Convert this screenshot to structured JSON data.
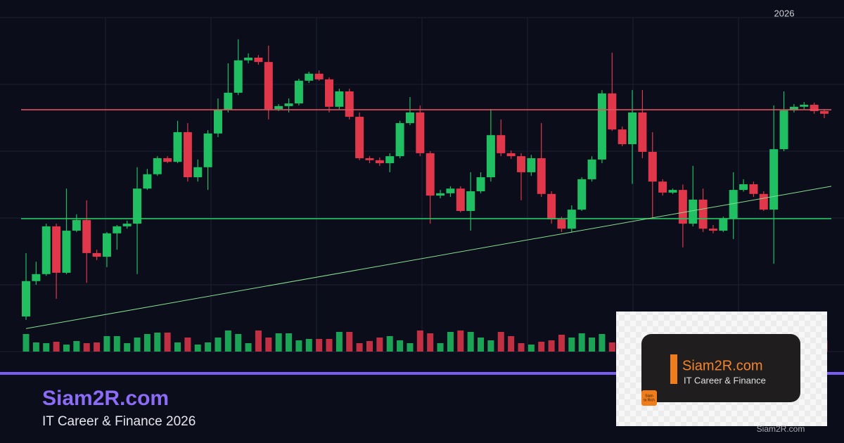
{
  "chart_data": {
    "type": "candlestick",
    "year_label": "2026",
    "open": [
      10.5,
      21.1,
      23.2,
      37.5,
      23.6,
      36.2,
      39.4,
      29.5,
      28.4,
      35.4,
      37.5,
      38.3,
      48.8,
      53.1,
      57.9,
      56.8,
      65.7,
      52.2,
      55.2,
      65.3,
      72.4,
      77.5,
      87.2,
      88.0,
      86.7,
      72.6,
      73.5,
      74.3,
      81.1,
      83.2,
      81.5,
      73.3,
      77.9,
      70.3,
      57.9,
      57.3,
      56.4,
      58.5,
      68.4,
      71.6,
      59.4,
      46.7,
      47.4,
      48.8,
      42.1,
      48.0,
      52.2,
      64.8,
      59.4,
      58.5,
      53.7,
      57.9,
      47.2,
      39.6,
      36.8,
      42.5,
      51.6,
      57.5,
      77.3,
      66.5,
      62.1,
      71.6,
      59.8,
      50.9,
      47.6,
      48.4,
      38.3,
      45.5,
      36.8,
      36.2,
      39.8,
      48.4,
      50.1,
      47.2,
      42.5,
      60.6,
      72.2,
      73.3,
      73.9,
      72.0
    ],
    "high": [
      29.5,
      26.9,
      38.3,
      38.3,
      48.8,
      41.1,
      45.3,
      30.5,
      35.8,
      37.9,
      39.2,
      55.2,
      54.7,
      58.5,
      58.5,
      69.1,
      68.4,
      57.5,
      66.3,
      75.8,
      86.3,
      93.5,
      89.3,
      88.8,
      91.6,
      74.1,
      75.8,
      81.7,
      83.8,
      84.2,
      82.1,
      78.7,
      78.7,
      71.6,
      58.5,
      58.1,
      59.4,
      69.1,
      76.2,
      73.7,
      60.0,
      48.4,
      49.5,
      49.5,
      53.7,
      53.7,
      72.6,
      69.5,
      60.2,
      59.4,
      58.9,
      68.4,
      48.0,
      40.4,
      43.8,
      52.2,
      58.5,
      78.3,
      89.5,
      67.4,
      78.3,
      78.3,
      65.7,
      51.6,
      48.8,
      50.0,
      55.6,
      48.8,
      37.9,
      40.4,
      53.7,
      51.6,
      50.9,
      48.0,
      73.7,
      77.9,
      74.1,
      74.7,
      74.5,
      72.6
    ],
    "low": [
      9.5,
      20.0,
      22.7,
      15.8,
      23.2,
      35.8,
      20.6,
      27.4,
      25.3,
      30.5,
      36.8,
      23.2,
      48.4,
      52.6,
      56.4,
      56.4,
      50.9,
      50.9,
      48.4,
      64.2,
      71.6,
      76.8,
      86.3,
      85.9,
      69.5,
      72.0,
      71.6,
      73.7,
      80.4,
      81.1,
      71.6,
      72.6,
      69.5,
      57.3,
      56.4,
      55.6,
      53.7,
      57.9,
      67.8,
      58.5,
      38.3,
      45.9,
      46.3,
      41.7,
      36.2,
      47.4,
      50.9,
      58.5,
      57.7,
      45.3,
      52.6,
      46.3,
      38.3,
      35.8,
      35.8,
      42.1,
      50.9,
      56.4,
      66.1,
      61.5,
      50.2,
      57.9,
      40.0,
      46.7,
      47.2,
      31.2,
      37.5,
      35.8,
      35.4,
      35.8,
      33.7,
      47.9,
      46.3,
      42.1,
      26.3,
      60.0,
      71.6,
      72.6,
      71.2,
      69.9
    ],
    "close": [
      21.1,
      23.2,
      37.5,
      23.6,
      36.2,
      39.4,
      29.5,
      28.4,
      35.4,
      37.5,
      38.3,
      48.8,
      53.1,
      57.9,
      56.8,
      65.7,
      52.2,
      55.2,
      65.3,
      72.4,
      77.5,
      87.2,
      88.0,
      86.7,
      72.6,
      73.5,
      74.3,
      81.1,
      83.2,
      81.5,
      73.3,
      77.9,
      70.3,
      57.9,
      57.3,
      56.4,
      58.5,
      68.4,
      71.6,
      59.4,
      46.7,
      47.4,
      48.8,
      42.1,
      48.0,
      52.2,
      64.8,
      59.4,
      58.5,
      53.7,
      57.9,
      47.2,
      39.6,
      36.8,
      42.5,
      51.6,
      57.5,
      77.3,
      66.5,
      62.1,
      71.6,
      59.8,
      50.9,
      47.6,
      48.4,
      38.3,
      45.5,
      36.8,
      36.2,
      39.8,
      48.4,
      50.1,
      47.2,
      42.5,
      60.6,
      72.2,
      73.3,
      73.9,
      72.0,
      71.2
    ],
    "volume": [
      25,
      13,
      12,
      14,
      10,
      15,
      12,
      13,
      22,
      22,
      12,
      20,
      25,
      27,
      27,
      13,
      20,
      10,
      13,
      20,
      30,
      25,
      12,
      30,
      20,
      26,
      26,
      16,
      18,
      18,
      18,
      28,
      28,
      12,
      15,
      20,
      22,
      16,
      12,
      30,
      26,
      12,
      28,
      30,
      28,
      20,
      16,
      28,
      22,
      12,
      10,
      14,
      16,
      24,
      20,
      26,
      20,
      25,
      13,
      12,
      15,
      25,
      28,
      20,
      22,
      18,
      25,
      12,
      20,
      16,
      22,
      26,
      18,
      24,
      15,
      20,
      18,
      22,
      25,
      16
    ],
    "ylim": [
      0,
      100
    ],
    "vlim": [
      0,
      60
    ],
    "ygrid": [
      0,
      20,
      40,
      60,
      80,
      100
    ],
    "up_color": "#1fbf62",
    "down_color": "#e0374a",
    "resistance": {
      "value": 72.4,
      "color": "#e0525e"
    },
    "support": {
      "value": 39.8,
      "color": "#22c55e"
    },
    "trendline": {
      "start": 6.9,
      "end": 49.5,
      "color": "#86e08f"
    }
  },
  "footer": {
    "brand": "Siam2R.com",
    "subtitle": "IT Career & Finance 2026"
  },
  "card": {
    "brand": "Siam2R.com",
    "tagline": "IT Career & Finance",
    "logo_top": "Siam",
    "logo_bottom": "to Rich",
    "watermark": "Siam2R.com"
  }
}
